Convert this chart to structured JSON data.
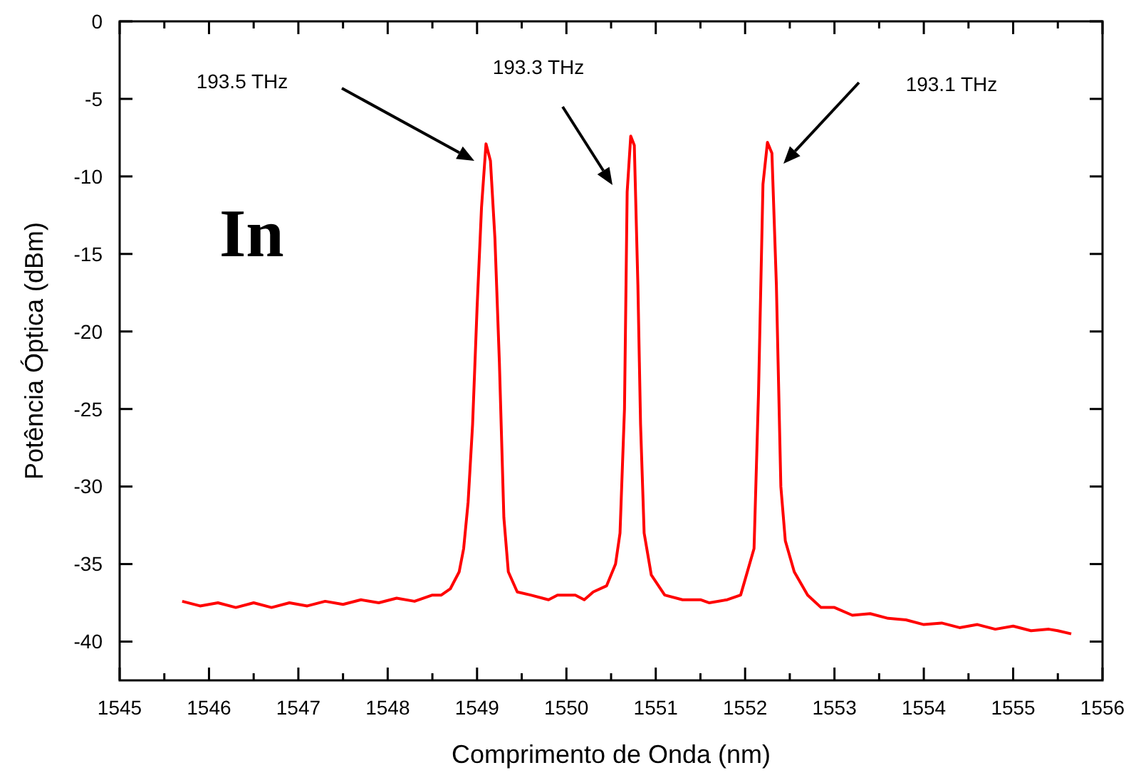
{
  "chart_data": {
    "type": "line",
    "xlabel": "Comprimento de Onda (nm)",
    "ylabel": "Potência Óptica (dBm)",
    "xlim": [
      1545,
      1556
    ],
    "ylim": [
      -42.5,
      0
    ],
    "xticks": [
      1545,
      {
        "value": 1545.5,
        "label": null
      },
      1546,
      {
        "value": 1546.5,
        "label": null
      },
      1547,
      {
        "value": 1547.5,
        "label": null
      },
      1548,
      {
        "value": 1548.5,
        "label": null
      },
      1549,
      {
        "value": 1549.5,
        "label": null
      },
      1550,
      {
        "value": 1550.5,
        "label": null
      },
      1551,
      {
        "value": 1551.5,
        "label": null
      },
      1552,
      {
        "value": 1552.5,
        "label": null
      },
      1553,
      {
        "value": 1553.5,
        "label": null
      },
      1554,
      {
        "value": 1554.5,
        "label": null
      },
      1555,
      {
        "value": 1555.5,
        "label": null
      },
      1556
    ],
    "yticks": [
      0,
      -5,
      -10,
      -15,
      -20,
      -25,
      -30,
      -35,
      -40
    ],
    "grid": false,
    "marker": "none",
    "line_style": "solid",
    "series": [
      {
        "color": "#ff0000",
        "x": [
          1545.7,
          1545.9,
          1546.1,
          1546.3,
          1546.5,
          1546.7,
          1546.9,
          1547.1,
          1547.3,
          1547.5,
          1547.7,
          1547.9,
          1548.1,
          1548.3,
          1548.5,
          1548.6,
          1548.7,
          1548.8,
          1548.85,
          1548.9,
          1548.95,
          1549.0,
          1549.05,
          1549.1,
          1549.15,
          1549.2,
          1549.25,
          1549.3,
          1549.35,
          1549.45,
          1549.6,
          1549.8,
          1549.9,
          1550.1,
          1550.2,
          1550.3,
          1550.45,
          1550.55,
          1550.6,
          1550.65,
          1550.68,
          1550.72,
          1550.76,
          1550.8,
          1550.83,
          1550.87,
          1550.95,
          1551.1,
          1551.3,
          1551.5,
          1551.6,
          1551.8,
          1551.95,
          1552.0,
          1552.1,
          1552.15,
          1552.2,
          1552.25,
          1552.3,
          1552.35,
          1552.4,
          1552.45,
          1552.55,
          1552.7,
          1552.85,
          1553.0,
          1553.2,
          1553.4,
          1553.6,
          1553.8,
          1554.0,
          1554.2,
          1554.4,
          1554.6,
          1554.8,
          1555.0,
          1555.2,
          1555.4,
          1555.5,
          1555.65
        ],
        "values": [
          -37.4,
          -37.7,
          -37.5,
          -37.8,
          -37.5,
          -37.8,
          -37.5,
          -37.7,
          -37.4,
          -37.6,
          -37.3,
          -37.5,
          -37.2,
          -37.4,
          -37.0,
          -37.0,
          -36.6,
          -35.5,
          -34,
          -31,
          -26,
          -18.5,
          -12,
          -7.9,
          -9,
          -14,
          -22,
          -32,
          -35.5,
          -36.8,
          -37.0,
          -37.3,
          -37.0,
          -37.0,
          -37.3,
          -36.8,
          -36.4,
          -35,
          -33,
          -25,
          -11,
          -7.4,
          -8,
          -17,
          -26,
          -33,
          -35.7,
          -37.0,
          -37.3,
          -37.3,
          -37.5,
          -37.3,
          -37.0,
          -36.0,
          -34,
          -24,
          -10.5,
          -7.8,
          -8.5,
          -17,
          -30,
          -33.5,
          -35.5,
          -37.0,
          -37.8,
          -37.8,
          -38.3,
          -38.2,
          -38.5,
          -38.6,
          -38.9,
          -38.8,
          -39.1,
          -38.9,
          -39.2,
          -39.0,
          -39.3,
          -39.2,
          -39.3,
          -39.5
        ]
      }
    ],
    "annotations": [
      "193.5 THz",
      "193.3 THz",
      "193.1 THz",
      "In"
    ]
  }
}
